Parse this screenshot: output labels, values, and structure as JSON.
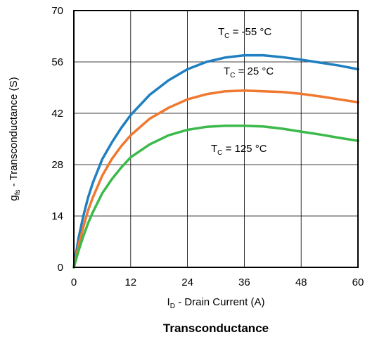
{
  "chart_data": {
    "type": "line",
    "title": "Transconductance",
    "xlabel": {
      "main": "I",
      "sub": "D",
      "rest": " - Drain Current (A)"
    },
    "ylabel": {
      "main": "g",
      "sub": "fs",
      "rest": " - Transconductance (S)"
    },
    "xlim": [
      0,
      60
    ],
    "ylim": [
      0,
      70
    ],
    "xticks": [
      0,
      12,
      24,
      36,
      48,
      60
    ],
    "yticks": [
      0,
      14,
      28,
      42,
      56,
      70
    ],
    "grid": true,
    "series": [
      {
        "label": {
          "main": "T",
          "sub": "C",
          "rest": " = -55 °C"
        },
        "color": "#1f7fc1",
        "x": [
          0,
          1,
          2,
          3,
          4,
          6,
          8,
          10,
          12,
          16,
          20,
          24,
          28,
          32,
          36,
          40,
          44,
          48,
          52,
          56,
          60
        ],
        "y": [
          0,
          8,
          14,
          19,
          23,
          29.5,
          34,
          38,
          41.5,
          47,
          51,
          54,
          56,
          57.2,
          57.8,
          57.8,
          57.3,
          56.6,
          55.8,
          55,
          54
        ]
      },
      {
        "label": {
          "main": "T",
          "sub": "C",
          "rest": " = 25 °C"
        },
        "color": "#f07830",
        "x": [
          0,
          1,
          2,
          3,
          4,
          6,
          8,
          10,
          12,
          16,
          20,
          24,
          28,
          32,
          36,
          40,
          44,
          48,
          52,
          56,
          60
        ],
        "y": [
          0,
          6,
          11,
          15.5,
          19,
          25,
          29.5,
          33,
          36,
          40.5,
          43.5,
          45.8,
          47.2,
          48,
          48.2,
          48,
          47.8,
          47.3,
          46.6,
          45.8,
          45
        ]
      },
      {
        "label": {
          "main": "T",
          "sub": "C",
          "rest": " = 125 °C"
        },
        "color": "#3cb94b",
        "x": [
          0,
          1,
          2,
          3,
          4,
          6,
          8,
          10,
          12,
          16,
          20,
          24,
          28,
          32,
          36,
          40,
          44,
          48,
          52,
          56,
          60
        ],
        "y": [
          0,
          4.5,
          8.5,
          12,
          15,
          20.2,
          24,
          27.2,
          30,
          33.5,
          36,
          37.5,
          38.3,
          38.6,
          38.6,
          38.4,
          37.8,
          37,
          36.2,
          35.3,
          34.5
        ]
      }
    ]
  }
}
